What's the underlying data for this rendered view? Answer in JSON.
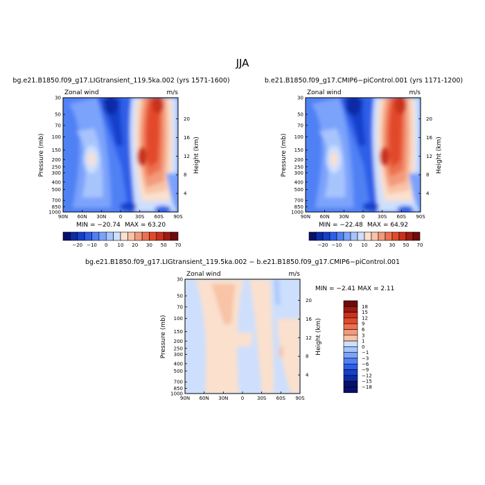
{
  "figure": {
    "title": "JJA"
  },
  "chart_data": [
    {
      "type": "heatmap",
      "panel": "top-left",
      "title": "bg.e21.B1850.f09_g17.LIGtransient_119.5ka.002 (yrs 1571-1600)",
      "variable_label": "Zonal wind",
      "units": "m/s",
      "xlabel": "",
      "ylabel": "Pressure (mb)",
      "y2label": "Height (km)",
      "x_ticks": [
        "90N",
        "60N",
        "30N",
        "0",
        "30S",
        "60S",
        "90S"
      ],
      "y_ticks": [
        "30",
        "50",
        "70",
        "100",
        "150",
        "200",
        "250",
        "300",
        "400",
        "500",
        "700",
        "850",
        "1000"
      ],
      "y2_ticks": [
        "20",
        "16",
        "12",
        "8",
        "4"
      ],
      "min_label": "MIN = −20.74",
      "max_label": "MAX = 63.20",
      "min": -20.74,
      "max": 63.2,
      "colorbar_labels": [
        "−20",
        "−10",
        "0",
        "10",
        "20",
        "30",
        "50",
        "70"
      ],
      "colorbar_levels": [
        -25,
        -20,
        -15,
        -10,
        -5,
        0,
        5,
        10,
        15,
        20,
        25,
        30,
        40,
        50,
        60,
        70
      ]
    },
    {
      "type": "heatmap",
      "panel": "top-right",
      "title": "b.e21.B1850.f09_g17.CMIP6−piControl.001 (yrs 1171-1200)",
      "variable_label": "Zonal wind",
      "units": "m/s",
      "xlabel": "",
      "ylabel": "Pressure (mb)",
      "y2label": "Height (km)",
      "x_ticks": [
        "90N",
        "60N",
        "30N",
        "0",
        "30S",
        "60S",
        "90S"
      ],
      "y_ticks": [
        "30",
        "50",
        "70",
        "100",
        "150",
        "200",
        "250",
        "300",
        "400",
        "500",
        "700",
        "850",
        "1000"
      ],
      "y2_ticks": [
        "20",
        "16",
        "12",
        "8",
        "4"
      ],
      "min_label": "MIN = −22.48",
      "max_label": "MAX = 64.92",
      "min": -22.48,
      "max": 64.92,
      "colorbar_labels": [
        "−20",
        "−10",
        "0",
        "10",
        "20",
        "30",
        "50",
        "70"
      ],
      "colorbar_levels": [
        -25,
        -20,
        -15,
        -10,
        -5,
        0,
        5,
        10,
        15,
        20,
        25,
        30,
        40,
        50,
        60,
        70
      ]
    },
    {
      "type": "heatmap",
      "panel": "bottom",
      "title": "bg.e21.B1850.f09_g17.LIGtransient_119.5ka.002 − b.e21.B1850.f09_g17.CMIP6−piControl.001",
      "variable_label": "Zonal wind",
      "units": "m/s",
      "xlabel": "",
      "ylabel": "Pressure (mb)",
      "y2label": "Height (km)",
      "x_ticks": [
        "90N",
        "60N",
        "30N",
        "0",
        "30S",
        "60S",
        "90S"
      ],
      "y_ticks": [
        "30",
        "50",
        "70",
        "100",
        "150",
        "200",
        "250",
        "300",
        "400",
        "500",
        "700",
        "850",
        "1000"
      ],
      "y2_ticks": [
        "20",
        "16",
        "12",
        "8",
        "4"
      ],
      "min_label": "MIN = −2.41",
      "max_label": "MAX = 2.11",
      "min": -2.41,
      "max": 2.11,
      "colorbar_labels": [
        "18",
        "15",
        "12",
        "9",
        "6",
        "3",
        "1",
        "0",
        "−1",
        "−3",
        "−6",
        "−9",
        "−12",
        "−15",
        "−18"
      ],
      "colorbar_levels": [
        -18,
        -15,
        -12,
        -9,
        -6,
        -3,
        -1,
        0,
        1,
        3,
        6,
        9,
        12,
        15,
        18
      ]
    }
  ],
  "colors": {
    "diverging": [
      "#08106b",
      "#0a2ca6",
      "#163fcc",
      "#2d5ee8",
      "#4f81f5",
      "#7ba3fb",
      "#a7c4fd",
      "#cddffd",
      "#fbe0cd",
      "#f8c3a6",
      "#f39a7a",
      "#ed7150",
      "#e24a2b",
      "#c9311c",
      "#9e1a12",
      "#6e0c0c"
    ]
  }
}
